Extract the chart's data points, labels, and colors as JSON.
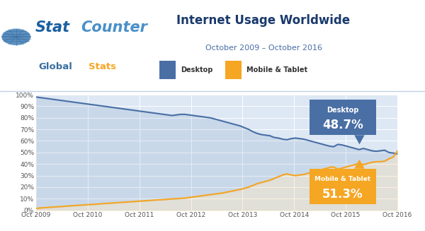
{
  "title": "Internet Usage Worldwide",
  "subtitle": "October 2009 – October 2016",
  "header_bg_color": "#ffffff",
  "plot_bg_color": "#dde8f4",
  "desktop_color": "#4a6fa5",
  "mobile_color": "#f5a623",
  "desktop_label": "Desktop",
  "mobile_label": "Mobile & Tablet",
  "desktop_pct": "48.7%",
  "mobile_pct": "51.3%",
  "title_color": "#1a3a6c",
  "subtitle_color": "#4a6fa5",
  "x_labels": [
    "Oct 2009",
    "Oct 2010",
    "Oct 2011",
    "Oct 2012",
    "Oct 2013",
    "Oct 2014",
    "Oct 2015",
    "Oct 2016"
  ],
  "x_positions": [
    0,
    12,
    24,
    36,
    48,
    60,
    72,
    84
  ],
  "desktop_data": [
    98.0,
    97.5,
    97.0,
    96.5,
    96.0,
    95.5,
    95.0,
    94.5,
    94.0,
    93.5,
    93.0,
    92.5,
    92.0,
    91.5,
    91.0,
    90.5,
    90.0,
    89.5,
    89.0,
    88.5,
    88.0,
    87.5,
    87.0,
    86.5,
    86.0,
    85.5,
    85.0,
    84.5,
    84.0,
    83.5,
    83.0,
    82.5,
    82.0,
    82.5,
    83.0,
    83.0,
    82.5,
    82.0,
    81.5,
    81.0,
    80.5,
    80.0,
    79.0,
    78.0,
    77.0,
    76.0,
    75.0,
    74.0,
    73.0,
    71.5,
    70.0,
    68.0,
    66.5,
    65.5,
    65.0,
    64.5,
    63.0,
    62.5,
    61.5,
    61.0,
    62.0,
    62.5,
    62.0,
    61.5,
    60.5,
    59.5,
    58.5,
    57.5,
    56.5,
    55.5,
    55.0,
    57.0,
    56.5,
    55.5,
    54.5,
    53.5,
    52.5,
    53.5,
    52.5,
    51.5,
    51.0,
    51.5,
    52.0,
    50.0,
    49.5,
    48.7
  ],
  "mobile_data": [
    1.5,
    2.0,
    2.2,
    2.5,
    2.7,
    3.0,
    3.2,
    3.5,
    3.8,
    4.0,
    4.3,
    4.5,
    4.8,
    5.0,
    5.2,
    5.5,
    5.8,
    6.0,
    6.3,
    6.5,
    6.8,
    7.0,
    7.2,
    7.5,
    7.8,
    8.0,
    8.3,
    8.5,
    8.8,
    9.0,
    9.2,
    9.5,
    9.8,
    10.0,
    10.3,
    10.5,
    11.0,
    11.5,
    12.0,
    12.5,
    13.0,
    13.5,
    14.0,
    14.5,
    15.0,
    15.8,
    16.5,
    17.3,
    18.0,
    19.0,
    20.0,
    21.5,
    23.0,
    24.0,
    25.0,
    26.0,
    27.5,
    29.0,
    30.5,
    31.5,
    30.5,
    30.0,
    30.5,
    31.0,
    32.0,
    33.0,
    34.0,
    35.0,
    36.0,
    37.0,
    37.5,
    35.5,
    36.5,
    37.5,
    38.5,
    39.5,
    40.5,
    39.5,
    40.5,
    41.5,
    42.0,
    42.0,
    42.5,
    44.5,
    46.0,
    51.3
  ],
  "ylim": [
    0,
    100
  ],
  "yticks": [
    0,
    10,
    20,
    30,
    40,
    50,
    60,
    70,
    80,
    90,
    100
  ],
  "ytick_labels": [
    "0%",
    "10%",
    "20%",
    "30%",
    "40%",
    "50%",
    "60%",
    "70%",
    "80%",
    "90%",
    "100%"
  ],
  "stat_color": "#1a5fa0",
  "counter_color": "#4a90c8",
  "global_color": "#3a6fa0",
  "stats_color": "#f5a623",
  "globe_color": "#5a8fc0"
}
